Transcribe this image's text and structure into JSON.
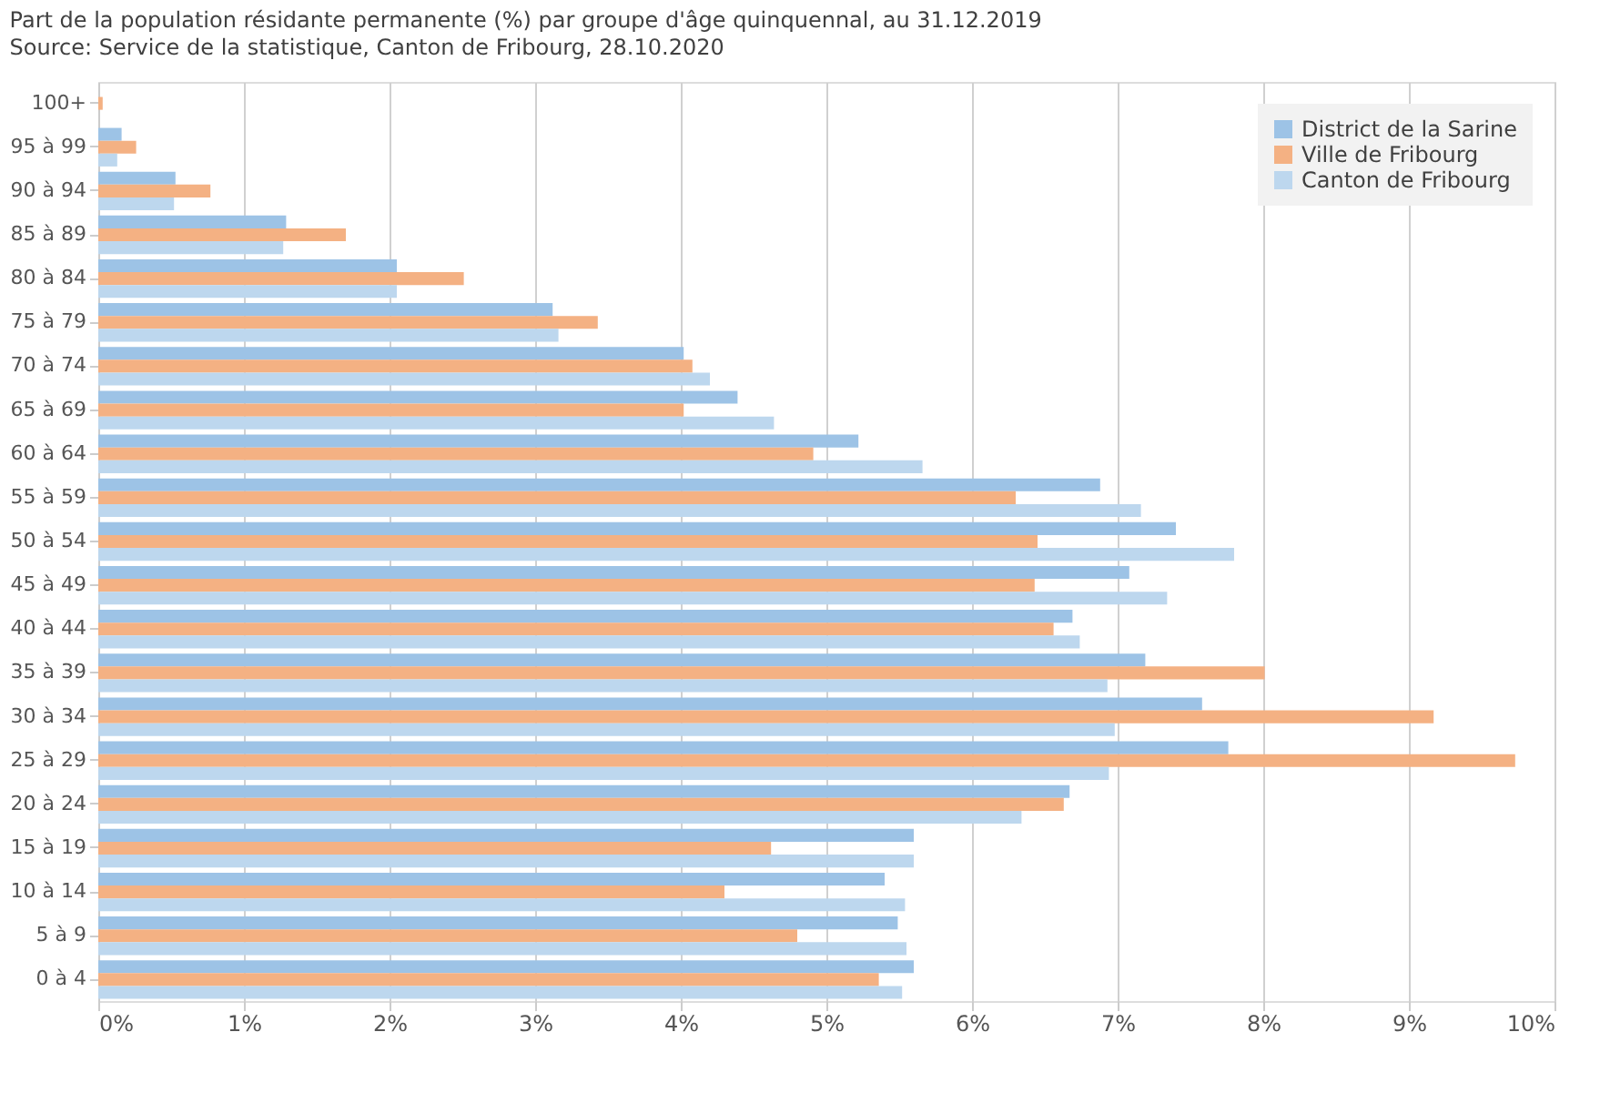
{
  "chart_data": {
    "type": "bar",
    "orientation": "horizontal",
    "title": "Part de la population résidante permanente (%) par groupe d'âge quinquennal, au 31.12.2019",
    "annotations": [
      "Source: Service de la statistique, Canton de Fribourg, 28.10.2020"
    ],
    "categories": [
      "100+",
      "95 à 99",
      "90 à 94",
      "85 à 89",
      "80 à 84",
      "75 à 79",
      "70 à 74",
      "65 à 69",
      "60 à 64",
      "55 à 59",
      "50 à 54",
      "45 à 49",
      "40 à 44",
      "35 à 39",
      "30 à 34",
      "25 à 29",
      "20 à 24",
      "15 à 19",
      "10 à 14",
      "5 à 9",
      "0 à 4"
    ],
    "series": [
      {
        "name": "District de la Sarine",
        "color": "#9dc3e6",
        "values": [
          0,
          0.16,
          0.53,
          1.29,
          2.05,
          3.12,
          4.02,
          4.39,
          5.22,
          6.88,
          7.4,
          7.08,
          6.69,
          7.19,
          7.58,
          7.76,
          6.67,
          5.6,
          5.4,
          5.49,
          5.6
        ]
      },
      {
        "name": "Ville de Fribourg",
        "color": "#f4b183",
        "values": [
          0.03,
          0.26,
          0.77,
          1.7,
          2.51,
          3.43,
          4.08,
          4.02,
          4.91,
          6.3,
          6.45,
          6.43,
          6.56,
          8.01,
          9.17,
          9.73,
          6.63,
          4.62,
          4.3,
          4.8,
          5.36
        ]
      },
      {
        "name": "Canton de Fribourg",
        "color": "#bdd7ee",
        "values": [
          0,
          0.13,
          0.52,
          1.27,
          2.05,
          3.16,
          4.2,
          4.64,
          5.66,
          7.16,
          7.8,
          7.34,
          6.74,
          6.93,
          6.98,
          6.94,
          6.34,
          5.6,
          5.54,
          5.55,
          5.52
        ]
      }
    ],
    "xlim": [
      0,
      10
    ],
    "xticks": [
      {
        "value": 0,
        "label": "0%"
      },
      {
        "value": 1,
        "label": "1%"
      },
      {
        "value": 2,
        "label": "2%"
      },
      {
        "value": 3,
        "label": "3%"
      },
      {
        "value": 4,
        "label": "4%"
      },
      {
        "value": 5,
        "label": "5%"
      },
      {
        "value": 6,
        "label": "6%"
      },
      {
        "value": 7,
        "label": "7%"
      },
      {
        "value": 8,
        "label": "8%"
      },
      {
        "value": 9,
        "label": "9%"
      },
      {
        "value": 10,
        "label": "10%"
      }
    ],
    "grid": "x",
    "legend": "top right"
  }
}
